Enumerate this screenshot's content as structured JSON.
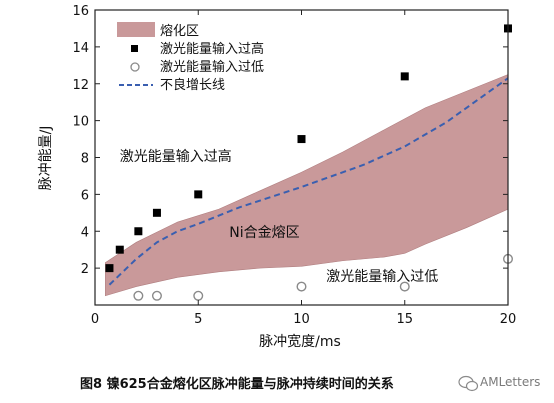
{
  "chart_data": {
    "type": "scatter",
    "xlabel": "脉冲宽度/ms",
    "ylabel": "脉冲能量/J",
    "xlim": [
      0,
      20
    ],
    "ylim": [
      0,
      16
    ],
    "x_ticks": [
      0,
      5,
      10,
      15,
      20
    ],
    "y_ticks": [
      2,
      4,
      6,
      8,
      10,
      12,
      14,
      16
    ],
    "grid": false,
    "legend_position": "top-left",
    "colors": {
      "region_fill": "#c9999a",
      "region_stroke": "#b07f80",
      "trend": "#3a5fb0",
      "high_marker": "#000000",
      "low_marker": "#8a8a8a"
    },
    "region": {
      "name": "熔化区",
      "lower": {
        "x": [
          0.5,
          2,
          4,
          6,
          8,
          10,
          12,
          14,
          15,
          16,
          18,
          20
        ],
        "y": [
          0.5,
          1.0,
          1.5,
          1.8,
          2.0,
          2.1,
          2.4,
          2.6,
          2.8,
          3.3,
          4.2,
          5.2
        ]
      },
      "upper": {
        "x": [
          0.5,
          2,
          4,
          6,
          8,
          10,
          12,
          14,
          16,
          18,
          20
        ],
        "y": [
          2.3,
          3.4,
          4.5,
          5.2,
          6.2,
          7.2,
          8.3,
          9.5,
          10.7,
          11.6,
          12.5
        ]
      }
    },
    "series": [
      {
        "name": "激光能量输入过高",
        "marker": "filled-square",
        "x": [
          0.7,
          1.2,
          2.1,
          3.0,
          5.0,
          10.0,
          15.0,
          20.0
        ],
        "y": [
          2.0,
          3.0,
          4.0,
          5.0,
          6.0,
          9.0,
          12.4,
          15.0
        ]
      },
      {
        "name": "激光能量输入过低",
        "marker": "open-circle",
        "x": [
          2.1,
          3.0,
          5.0,
          10.0,
          15.0,
          20.0
        ],
        "y": [
          0.5,
          0.5,
          0.5,
          1.0,
          1.0,
          2.5
        ]
      },
      {
        "name": "不良增长线",
        "marker": "dashed-line",
        "x": [
          0.7,
          2,
          3,
          4,
          5,
          7,
          10,
          13,
          15,
          17,
          20
        ],
        "y": [
          1.1,
          2.5,
          3.4,
          4.0,
          4.4,
          5.3,
          6.4,
          7.6,
          8.6,
          9.9,
          12.3
        ]
      }
    ],
    "annotations": [
      {
        "text": "激光能量输入过高",
        "x": 1.2,
        "y": 7.8
      },
      {
        "text": "Ni合金熔区",
        "x": 6.5,
        "y": 3.7
      },
      {
        "text": "激光能量输入过低",
        "x": 11.2,
        "y": 1.3
      }
    ],
    "caption": "图8   镍625合金熔化区脉冲能量与脉冲持续时间的关系",
    "watermark": "AMLetters"
  }
}
